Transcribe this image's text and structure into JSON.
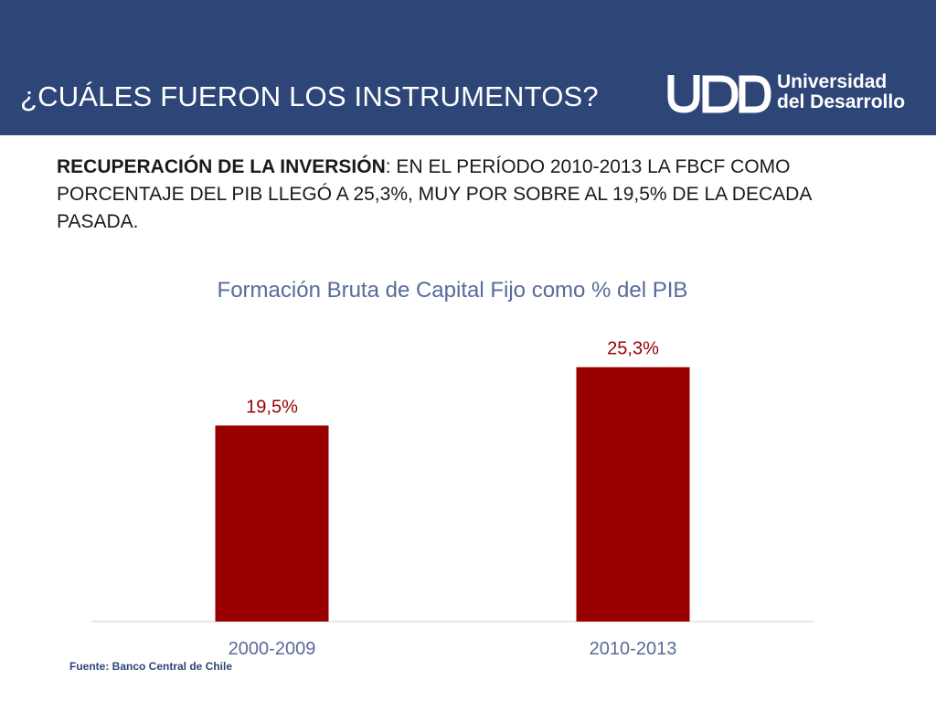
{
  "header": {
    "title": "¿CUÁLES FUERON LOS INSTRUMENTOS?",
    "logo": {
      "mark": "UDD",
      "line1": "Universidad",
      "line2": "del Desarrollo"
    }
  },
  "subtitle": {
    "lead": "RECUPERACIÓN DE LA INVERSIÓN",
    "rest": ": EN EL PERÍODO 2010-2013 LA FBCF COMO PORCENTAJE DEL PIB LLEGÓ A 25,3%, MUY POR SOBRE AL 19,5% DE LA DECADA PASADA."
  },
  "chart_data": {
    "type": "bar",
    "title": "Formación Bruta de Capital Fijo como % del PIB",
    "categories": [
      "2000-2009",
      "2010-2013"
    ],
    "values": [
      19.5,
      25.3
    ],
    "data_labels": [
      "19,5%",
      "25,3%"
    ],
    "xlabel": "",
    "ylabel": "",
    "ylim": [
      0,
      30
    ],
    "grid": false,
    "legend": "none",
    "bar_color": "#990000",
    "label_color": "#990000",
    "tick_color": "#5a6a9a"
  },
  "source": "Fuente: Banco Central de Chile",
  "colors": {
    "header_bg": "#2e4577",
    "header_text": "#ffffff"
  }
}
